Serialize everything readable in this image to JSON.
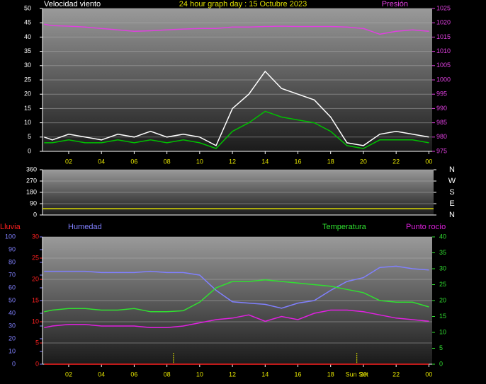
{
  "chart_data": [
    {
      "type": "line",
      "title": "24 hour graph day : 15 Octubre 2023",
      "x": [
        0.5,
        1,
        2,
        3,
        4,
        5,
        6,
        7,
        8,
        9,
        10,
        11,
        12,
        13,
        14,
        15,
        16,
        17,
        18,
        19,
        20,
        21,
        22,
        23,
        24
      ],
      "xlim": [
        0.4,
        24.2
      ],
      "xticks": [
        {
          "value": 2,
          "label": "02"
        },
        {
          "value": 4,
          "label": "04"
        },
        {
          "value": 6,
          "label": "06"
        },
        {
          "value": 8,
          "label": "08"
        },
        10,
        12,
        14,
        16,
        18,
        20,
        22,
        {
          "value": 24,
          "label": "00"
        }
      ],
      "ylim": [
        0,
        50
      ],
      "yticks": [
        0,
        5,
        10,
        15,
        20,
        25,
        30,
        35,
        40,
        45,
        50
      ],
      "y2lim": [
        975,
        1025
      ],
      "y2ticks": [
        975,
        980,
        985,
        990,
        995,
        1000,
        1005,
        1010,
        1015,
        1020,
        1025
      ],
      "grid": true,
      "series": [
        {
          "name": "Velocidad viento",
          "color": "#ffffff",
          "values": [
            5,
            4,
            6,
            5,
            4,
            6,
            5,
            7,
            5,
            6,
            5,
            2,
            15,
            20,
            28,
            22,
            20,
            18,
            12,
            3,
            2,
            6,
            7,
            6,
            5
          ]
        },
        {
          "color": "#00c000",
          "values": [
            3,
            3,
            4,
            3,
            3,
            4,
            3,
            4,
            3,
            4,
            3,
            1,
            7,
            10,
            14,
            12,
            11,
            10,
            7,
            2,
            1,
            4,
            4,
            4,
            3
          ]
        },
        {
          "name": "Presión",
          "color": "#e040e0",
          "axis": "y2",
          "values": [
            1019.5,
            1019,
            1018.8,
            1018.5,
            1018,
            1017.5,
            1017,
            1017.2,
            1017.5,
            1017.8,
            1018,
            1018,
            1018.5,
            1018.5,
            1018.7,
            1018.8,
            1018.7,
            1018.7,
            1018.7,
            1018.5,
            1018,
            1016,
            1017,
            1017.5,
            1017
          ]
        }
      ]
    },
    {
      "type": "line",
      "x": [
        0.4,
        24.2
      ],
      "xlim": [
        0.4,
        24.2
      ],
      "ylim": [
        0,
        360
      ],
      "yticks": [
        0,
        90,
        180,
        270,
        360
      ],
      "y2lim": [
        0,
        360
      ],
      "y2ticks": [
        {
          "value": 0,
          "label": "N"
        },
        {
          "value": 90,
          "label": "E"
        },
        {
          "value": 180,
          "label": "S"
        },
        {
          "value": 270,
          "label": "W"
        },
        {
          "value": 360,
          "label": "N"
        }
      ],
      "grid": true,
      "series": [
        {
          "color": "#e0e000",
          "values": [
            50,
            50
          ]
        }
      ]
    },
    {
      "type": "line",
      "x": [
        0.5,
        1,
        2,
        3,
        4,
        5,
        6,
        7,
        8,
        9,
        10,
        11,
        12,
        13,
        14,
        15,
        16,
        17,
        18,
        19,
        20,
        21,
        22,
        23,
        24
      ],
      "xlim": [
        0.4,
        24.2
      ],
      "xticks": [
        {
          "value": 2,
          "label": "02"
        },
        {
          "value": 4,
          "label": "04"
        },
        {
          "value": 6,
          "label": "06"
        },
        {
          "value": 8,
          "label": "08"
        },
        10,
        12,
        14,
        16,
        18,
        20,
        22,
        {
          "value": 24,
          "label": "00"
        }
      ],
      "ylim": [
        0,
        30
      ],
      "yticks": [
        0,
        5,
        10,
        15,
        20,
        25,
        30
      ],
      "y2lim": [
        0,
        40
      ],
      "y2ticks": [
        0,
        5,
        10,
        15,
        20,
        25,
        30,
        35,
        40
      ],
      "y3lim": [
        0,
        100
      ],
      "y3ticks": [
        0,
        10,
        20,
        30,
        40,
        50,
        60,
        70,
        80,
        90,
        100
      ],
      "grid": true,
      "markers": [
        {
          "x": 8.4
        },
        {
          "x": 19.6,
          "label": "Sun Set"
        }
      ],
      "series": [
        {
          "name": "Lluvia",
          "color": "#ff2020",
          "values": [
            0,
            0,
            0,
            0,
            0,
            0,
            0,
            0,
            0,
            0,
            0,
            0,
            0,
            0,
            0,
            0,
            0,
            0,
            0,
            0,
            0,
            0,
            0,
            0,
            0
          ]
        },
        {
          "name": "Humedad",
          "color": "#8080ff",
          "axis": "y3",
          "values": [
            73,
            73,
            73,
            73,
            72,
            72,
            72,
            73,
            72,
            72,
            70,
            58,
            49,
            48,
            47,
            44,
            48,
            50,
            58,
            65,
            68,
            76,
            77,
            75,
            74
          ]
        },
        {
          "name": "Temperatura",
          "color": "#30e030",
          "axis": "y2",
          "values": [
            16.5,
            17,
            17.5,
            17.5,
            17,
            17,
            17.5,
            16.5,
            16.5,
            16.8,
            19.5,
            24,
            26,
            26,
            26.5,
            26,
            25.5,
            25,
            24.5,
            23.5,
            22.5,
            20,
            19.5,
            19.5,
            18
          ]
        },
        {
          "name": "Punto rocío",
          "color": "#e020e0",
          "axis": "y2",
          "values": [
            11.5,
            12,
            12.5,
            12.5,
            12,
            12,
            12,
            11.5,
            11.5,
            12,
            13,
            14,
            14.5,
            15.5,
            13.5,
            15,
            14,
            16,
            17,
            17,
            16.5,
            15.5,
            14.5,
            14,
            13.5
          ]
        }
      ]
    }
  ]
}
